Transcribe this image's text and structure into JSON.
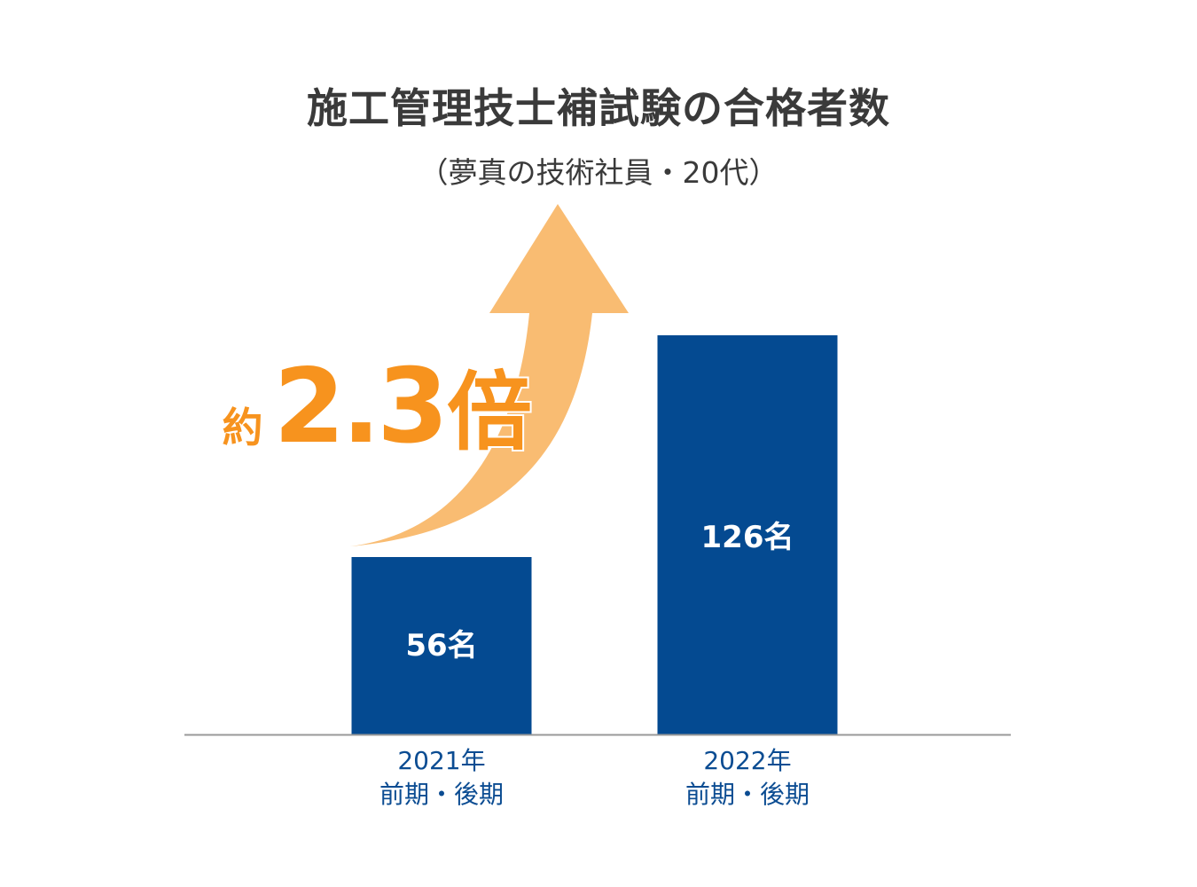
{
  "header": {
    "title": "施工管理技士補試験の合格者数",
    "subtitle": "（夢真の技術社員・20代）"
  },
  "colors": {
    "bar": "#044a91",
    "highlight": "#f7931e",
    "arrow": "#f9bc72",
    "axis": "#999999",
    "text": "#3a3a3a",
    "tick": "#0b4c92"
  },
  "chart_data": {
    "type": "bar",
    "title": "施工管理技士補試験の合格者数",
    "subtitle": "（夢真の技術社員・20代）",
    "categories": [
      [
        "2021年",
        "前期・後期"
      ],
      [
        "2022年",
        "前期・後期"
      ]
    ],
    "values": [
      56,
      126
    ],
    "data_labels": [
      "56名",
      "126名"
    ],
    "unit": "名",
    "ylim": [
      0,
      126
    ],
    "grid": false,
    "annotation": {
      "prefix": "約",
      "value": "2.3",
      "suffix": "倍"
    }
  }
}
